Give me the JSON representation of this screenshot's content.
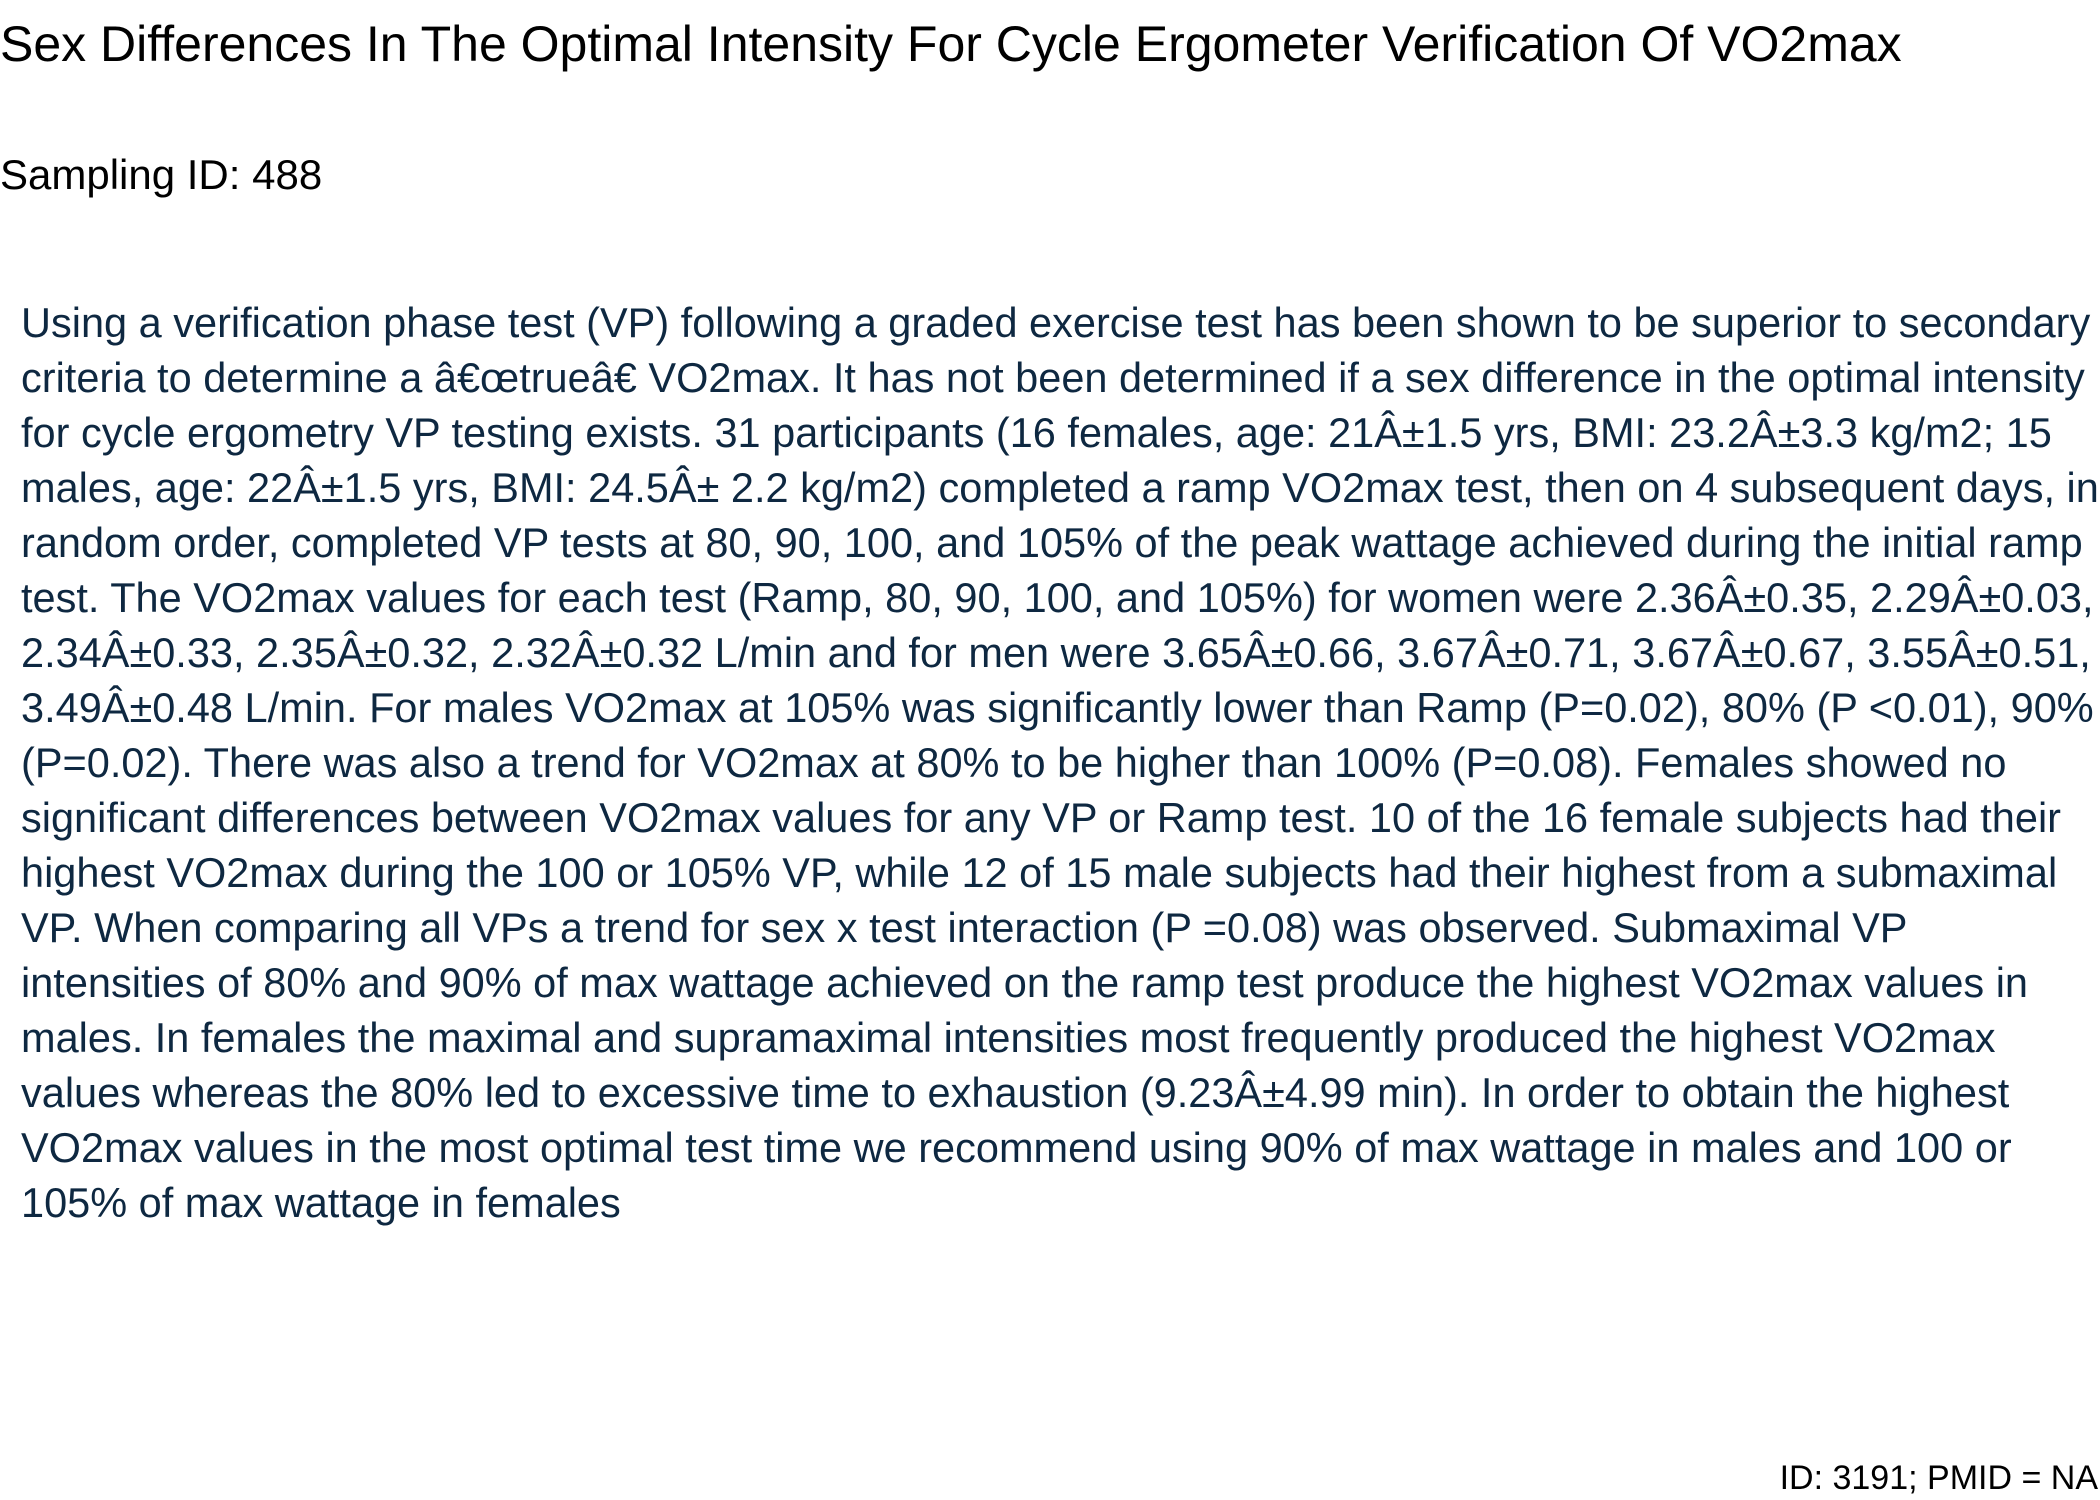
{
  "document": {
    "title": "Sex Differences In The Optimal Intensity For Cycle Ergometer Verification Of VO2max",
    "sampling_id": "Sampling ID: 488",
    "abstract": "Using a verification phase test (VP) following a graded exercise test has been shown to be superior to secondary criteria to determine a â€œtrueâ€ VO2max. It has not been determined if a sex difference in the optimal intensity for cycle ergometry VP testing exists. 31 participants (16 females, age: 21Â±1.5 yrs, BMI: 23.2Â±3.3 kg/m2; 15 males, age: 22Â±1.5 yrs, BMI: 24.5Â± 2.2 kg/m2) completed a ramp VO2max test, then on 4 subsequent days, in random order, completed VP tests at 80, 90, 100, and 105% of the peak wattage achieved during the initial ramp test. The VO2max values for each test (Ramp, 80, 90, 100, and 105%) for women were 2.36Â±0.35, 2.29Â±0.03, 2.34Â±0.33, 2.35Â±0.32, 2.32Â±0.32 L/min and for men were 3.65Â±0.66, 3.67Â±0.71, 3.67Â±0.67, 3.55Â±0.51, 3.49Â±0.48 L/min. For males VO2max at 105% was significantly lower than Ramp (P=0.02), 80% (P <0.01), 90% (P=0.02). There was also a trend for VO2max at 80% to be higher than 100% (P=0.08). Females showed no significant differences between VO2max values for any VP or Ramp test. 10 of the 16 female subjects had their highest VO2max during the 100 or 105% VP, while 12 of 15 male subjects had their highest from a submaximal VP. When comparing all VPs a trend for sex x test interaction (P =0.08) was observed. Submaximal VP intensities of 80% and 90% of max wattage achieved on the ramp test produce the highest VO2max values in males. In females the maximal and supramaximal intensities most frequently produced the highest VO2max values whereas the 80% led to excessive time to exhaustion (9.23Â±4.99 min). In order to obtain the highest VO2max values in the most optimal test time we recommend using 90% of max wattage in males and 100 or 105% of max wattage in females",
    "footer_id": "ID: 3191; PMID = NA"
  },
  "colors": {
    "title_text": "#000000",
    "abstract_text": "#0e2841",
    "background": "#ffffff"
  }
}
